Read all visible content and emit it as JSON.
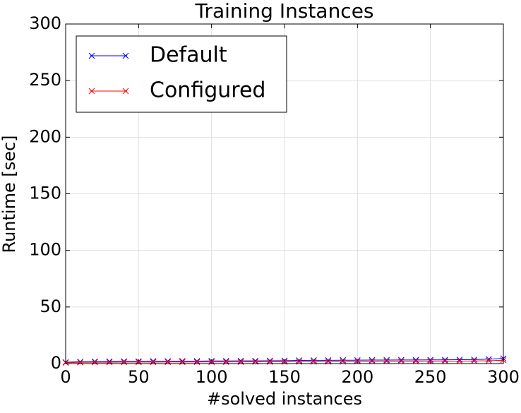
{
  "chart_data": {
    "type": "line",
    "title": "Training Instances",
    "xlabel": "#solved instances",
    "ylabel": "Runtime [sec]",
    "x": [
      0,
      10,
      20,
      30,
      40,
      50,
      60,
      70,
      80,
      90,
      100,
      110,
      120,
      130,
      140,
      150,
      160,
      170,
      180,
      190,
      200,
      210,
      220,
      230,
      240,
      250,
      260,
      270,
      280,
      290,
      300
    ],
    "series": [
      {
        "name": "Default",
        "color": "#0000ff",
        "values": [
          1.2,
          1.6,
          1.8,
          1.9,
          2.0,
          2.0,
          2.1,
          2.1,
          2.2,
          2.2,
          2.3,
          2.3,
          2.4,
          2.4,
          2.5,
          2.6,
          2.8,
          2.9,
          2.9,
          3.0,
          3.0,
          3.1,
          3.1,
          3.2,
          3.2,
          3.3,
          3.3,
          3.4,
          3.5,
          3.9,
          4.5
        ]
      },
      {
        "name": "Configured",
        "color": "#ff0000",
        "values": [
          0.8,
          1.1,
          1.2,
          1.2,
          1.3,
          1.3,
          1.3,
          1.4,
          1.4,
          1.4,
          1.5,
          1.5,
          1.5,
          1.6,
          1.6,
          1.6,
          1.7,
          1.7,
          1.8,
          1.8,
          1.9,
          1.9,
          2.0,
          2.0,
          2.1,
          2.1,
          2.2,
          2.2,
          2.3,
          2.5,
          3.0
        ]
      }
    ],
    "xlim": [
      0,
      300
    ],
    "xticks": [
      0,
      50,
      100,
      150,
      200,
      250,
      300
    ],
    "ylim": [
      0,
      300
    ],
    "yticks": [
      0,
      50,
      100,
      150,
      200,
      250,
      300
    ],
    "grid": true,
    "legend": "upper left"
  }
}
